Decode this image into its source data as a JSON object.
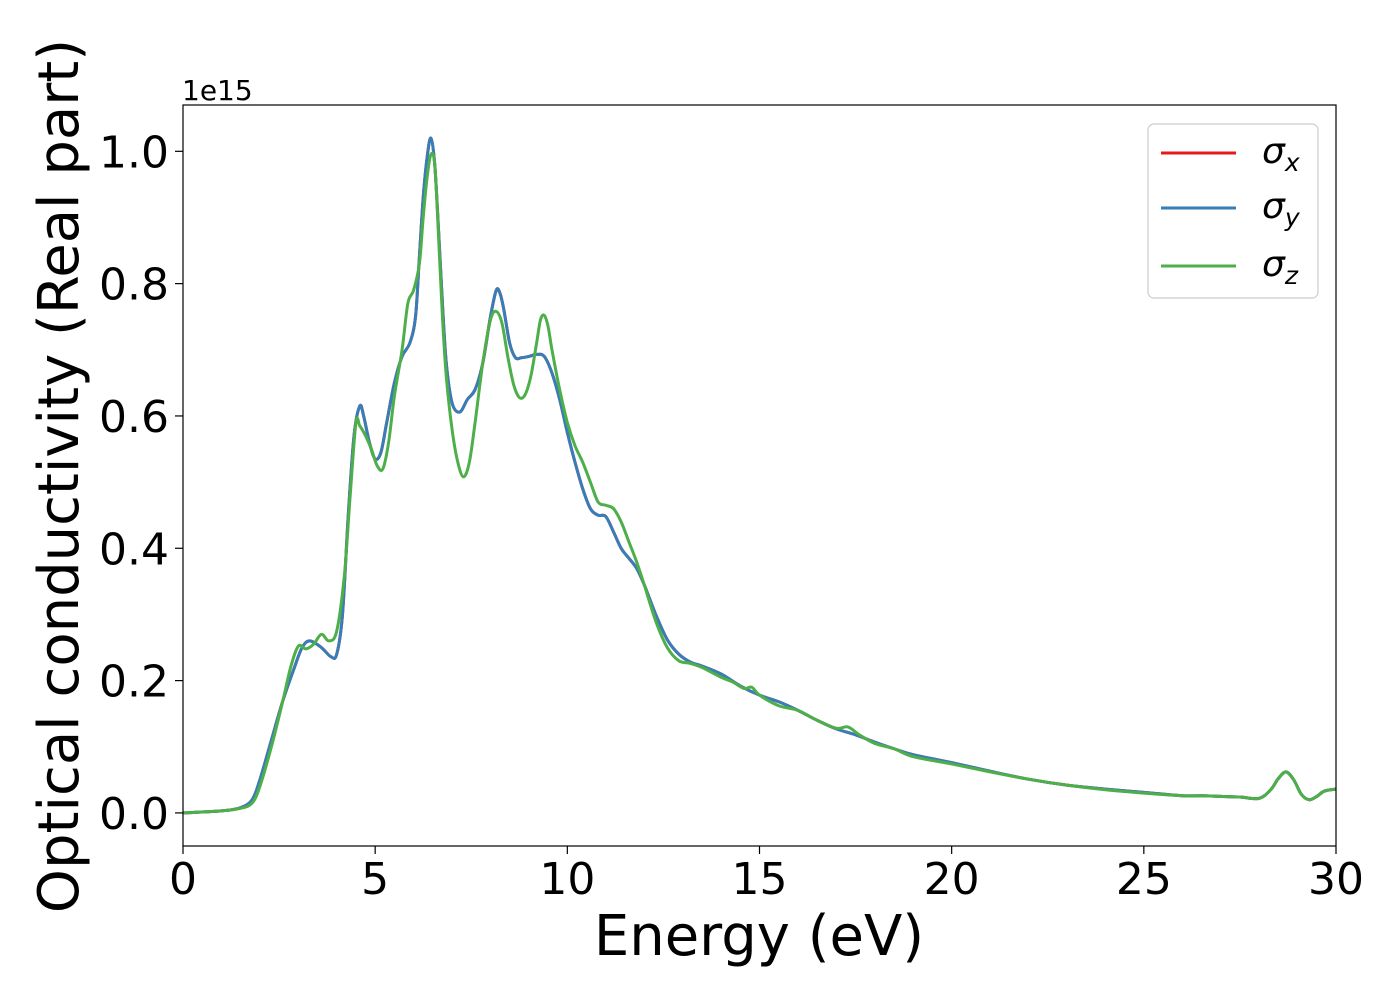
{
  "chart_data": {
    "type": "line",
    "title": "",
    "xlabel": "Energy (eV)",
    "ylabel": "Optical conductivity (Real part)",
    "offset_text": "1e15",
    "xlim": [
      0,
      30
    ],
    "ylim": [
      -0.05,
      1.07
    ],
    "x_scale_factor": 1000000000000000.0,
    "xticks": [
      0,
      5,
      10,
      15,
      20,
      25,
      30
    ],
    "xtick_labels": [
      "0",
      "5",
      "10",
      "15",
      "20",
      "25",
      "30"
    ],
    "yticks": [
      0.0,
      0.2,
      0.4,
      0.6,
      0.8,
      1.0
    ],
    "ytick_labels": [
      "0.0",
      "0.2",
      "0.4",
      "0.6",
      "0.8",
      "1.0"
    ],
    "grid": false,
    "legend_position": "top-right",
    "series": [
      {
        "name": "σx",
        "legend_sym": "σ",
        "legend_sub": "x",
        "color": "#e41a1c",
        "x": [
          0,
          1,
          1.5,
          1.8,
          2.0,
          2.3,
          2.6,
          2.9,
          3.1,
          3.3,
          3.6,
          3.85,
          4.0,
          4.15,
          4.3,
          4.45,
          4.6,
          4.7,
          4.85,
          5.0,
          5.15,
          5.3,
          5.5,
          5.7,
          5.9,
          6.05,
          6.15,
          6.25,
          6.35,
          6.45,
          6.55,
          6.65,
          6.75,
          6.85,
          7.0,
          7.2,
          7.4,
          7.6,
          7.8,
          8.0,
          8.15,
          8.25,
          8.35,
          8.5,
          8.65,
          8.8,
          9.0,
          9.2,
          9.4,
          9.6,
          9.8,
          10.0,
          10.2,
          10.4,
          10.6,
          10.8,
          11.0,
          11.2,
          11.4,
          11.6,
          11.8,
          12.0,
          12.3,
          12.6,
          12.9,
          13.2,
          13.5,
          14.0,
          14.5,
          15.0,
          15.5,
          16.0,
          16.5,
          17.0,
          17.5,
          18.0,
          18.5,
          19.0,
          20.0,
          21.0,
          22.0,
          23.0,
          24.0,
          25.0,
          26.0,
          26.5,
          27.0,
          27.5,
          28.0,
          28.3,
          28.5,
          28.7,
          28.9,
          29.1,
          29.3,
          29.5,
          29.7,
          30.0
        ],
        "values": [
          0.0,
          0.003,
          0.008,
          0.02,
          0.05,
          0.11,
          0.17,
          0.22,
          0.25,
          0.26,
          0.25,
          0.236,
          0.24,
          0.3,
          0.45,
          0.57,
          0.615,
          0.6,
          0.56,
          0.535,
          0.545,
          0.59,
          0.65,
          0.69,
          0.71,
          0.75,
          0.84,
          0.93,
          0.99,
          1.02,
          0.98,
          0.88,
          0.77,
          0.68,
          0.62,
          0.606,
          0.625,
          0.64,
          0.68,
          0.75,
          0.79,
          0.785,
          0.76,
          0.71,
          0.688,
          0.688,
          0.69,
          0.693,
          0.69,
          0.665,
          0.625,
          0.575,
          0.53,
          0.49,
          0.46,
          0.45,
          0.448,
          0.425,
          0.4,
          0.385,
          0.37,
          0.345,
          0.3,
          0.262,
          0.24,
          0.228,
          0.222,
          0.21,
          0.192,
          0.178,
          0.168,
          0.155,
          0.14,
          0.127,
          0.118,
          0.107,
          0.097,
          0.088,
          0.076,
          0.063,
          0.051,
          0.042,
          0.036,
          0.031,
          0.026,
          0.026,
          0.025,
          0.024,
          0.022,
          0.035,
          0.052,
          0.062,
          0.05,
          0.028,
          0.02,
          0.025,
          0.033,
          0.036
        ]
      },
      {
        "name": "σy",
        "legend_sym": "σ",
        "legend_sub": "y",
        "color": "#377eb8",
        "x": [
          0,
          1,
          1.5,
          1.8,
          2.0,
          2.3,
          2.6,
          2.9,
          3.1,
          3.3,
          3.6,
          3.85,
          4.0,
          4.15,
          4.3,
          4.45,
          4.6,
          4.7,
          4.85,
          5.0,
          5.15,
          5.3,
          5.5,
          5.7,
          5.9,
          6.05,
          6.15,
          6.25,
          6.35,
          6.45,
          6.55,
          6.65,
          6.75,
          6.85,
          7.0,
          7.2,
          7.4,
          7.6,
          7.8,
          8.0,
          8.15,
          8.25,
          8.35,
          8.5,
          8.65,
          8.8,
          9.0,
          9.2,
          9.4,
          9.6,
          9.8,
          10.0,
          10.2,
          10.4,
          10.6,
          10.8,
          11.0,
          11.2,
          11.4,
          11.6,
          11.8,
          12.0,
          12.3,
          12.6,
          12.9,
          13.2,
          13.5,
          14.0,
          14.5,
          15.0,
          15.5,
          16.0,
          16.5,
          17.0,
          17.5,
          18.0,
          18.5,
          19.0,
          20.0,
          21.0,
          22.0,
          23.0,
          24.0,
          25.0,
          26.0,
          26.5,
          27.0,
          27.5,
          28.0,
          28.3,
          28.5,
          28.7,
          28.9,
          29.1,
          29.3,
          29.5,
          29.7,
          30.0
        ],
        "values": [
          0.0,
          0.003,
          0.008,
          0.02,
          0.05,
          0.11,
          0.17,
          0.22,
          0.25,
          0.26,
          0.25,
          0.236,
          0.24,
          0.3,
          0.45,
          0.57,
          0.615,
          0.6,
          0.56,
          0.535,
          0.545,
          0.59,
          0.65,
          0.69,
          0.71,
          0.75,
          0.84,
          0.93,
          0.99,
          1.02,
          0.98,
          0.88,
          0.77,
          0.68,
          0.62,
          0.606,
          0.625,
          0.64,
          0.68,
          0.75,
          0.79,
          0.785,
          0.76,
          0.71,
          0.688,
          0.688,
          0.69,
          0.693,
          0.69,
          0.665,
          0.625,
          0.575,
          0.53,
          0.49,
          0.46,
          0.45,
          0.448,
          0.425,
          0.4,
          0.385,
          0.37,
          0.345,
          0.3,
          0.262,
          0.24,
          0.228,
          0.222,
          0.21,
          0.192,
          0.178,
          0.168,
          0.155,
          0.14,
          0.127,
          0.118,
          0.107,
          0.097,
          0.088,
          0.076,
          0.063,
          0.051,
          0.042,
          0.036,
          0.031,
          0.026,
          0.026,
          0.025,
          0.024,
          0.022,
          0.035,
          0.052,
          0.062,
          0.05,
          0.028,
          0.02,
          0.025,
          0.033,
          0.036
        ]
      },
      {
        "name": "σz",
        "legend_sym": "σ",
        "legend_sub": "z",
        "color": "#4daf4a",
        "x": [
          0,
          1,
          1.5,
          1.8,
          2.0,
          2.3,
          2.6,
          2.8,
          3.0,
          3.2,
          3.4,
          3.6,
          3.8,
          4.0,
          4.2,
          4.35,
          4.5,
          4.6,
          4.75,
          4.9,
          5.05,
          5.2,
          5.35,
          5.5,
          5.7,
          5.85,
          6.0,
          6.15,
          6.25,
          6.35,
          6.45,
          6.55,
          6.65,
          6.75,
          6.85,
          7.0,
          7.15,
          7.3,
          7.45,
          7.6,
          7.8,
          8.0,
          8.15,
          8.3,
          8.45,
          8.6,
          8.75,
          8.9,
          9.05,
          9.2,
          9.3,
          9.4,
          9.5,
          9.6,
          9.8,
          10.0,
          10.2,
          10.4,
          10.6,
          10.8,
          11.0,
          11.2,
          11.4,
          11.6,
          11.8,
          12.0,
          12.3,
          12.6,
          12.9,
          13.2,
          13.5,
          14.0,
          14.3,
          14.6,
          14.8,
          15.0,
          15.5,
          16.0,
          16.5,
          17.0,
          17.3,
          17.6,
          18.0,
          18.5,
          19.0,
          20.0,
          21.0,
          22.0,
          23.0,
          24.0,
          25.0,
          26.0,
          26.5,
          27.0,
          27.5,
          28.0,
          28.3,
          28.5,
          28.7,
          28.9,
          29.1,
          29.3,
          29.5,
          29.7,
          30.0
        ],
        "values": [
          0.0,
          0.003,
          0.007,
          0.015,
          0.04,
          0.1,
          0.17,
          0.22,
          0.252,
          0.248,
          0.255,
          0.27,
          0.26,
          0.275,
          0.36,
          0.48,
          0.59,
          0.585,
          0.57,
          0.55,
          0.525,
          0.52,
          0.56,
          0.63,
          0.7,
          0.77,
          0.79,
          0.83,
          0.9,
          0.96,
          0.995,
          0.98,
          0.87,
          0.75,
          0.66,
          0.58,
          0.53,
          0.508,
          0.53,
          0.59,
          0.68,
          0.745,
          0.758,
          0.74,
          0.69,
          0.648,
          0.628,
          0.632,
          0.66,
          0.71,
          0.745,
          0.752,
          0.735,
          0.7,
          0.64,
          0.59,
          0.555,
          0.53,
          0.5,
          0.47,
          0.465,
          0.46,
          0.44,
          0.41,
          0.38,
          0.345,
          0.29,
          0.25,
          0.23,
          0.226,
          0.22,
          0.205,
          0.198,
          0.188,
          0.19,
          0.178,
          0.162,
          0.155,
          0.14,
          0.128,
          0.13,
          0.118,
          0.105,
          0.097,
          0.085,
          0.074,
          0.062,
          0.051,
          0.042,
          0.035,
          0.03,
          0.026,
          0.026,
          0.025,
          0.024,
          0.022,
          0.035,
          0.052,
          0.062,
          0.05,
          0.028,
          0.02,
          0.025,
          0.033,
          0.036
        ]
      }
    ]
  }
}
